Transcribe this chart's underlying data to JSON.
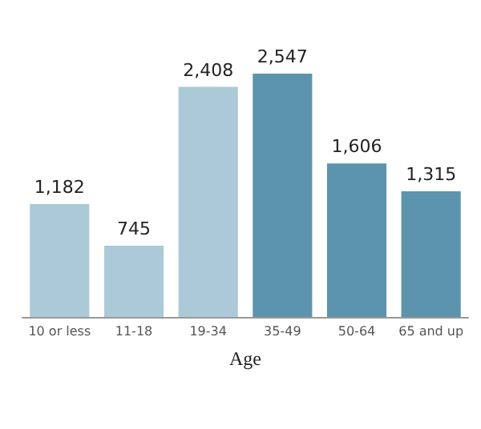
{
  "chart_data": {
    "type": "bar",
    "xlabel": "Age",
    "categories": [
      "10 or less",
      "11-18",
      "19-34",
      "35-49",
      "50-64",
      "65 and up"
    ],
    "values": [
      1182,
      745,
      2408,
      2547,
      1606,
      1315
    ],
    "value_labels": [
      "1,182",
      "745",
      "2,408",
      "2,547",
      "1,606",
      "1,315"
    ],
    "colors": [
      "#abc9d7",
      "#abc9d7",
      "#abc9d7",
      "#5d94ad",
      "#5d94ad",
      "#5d94ad"
    ]
  }
}
